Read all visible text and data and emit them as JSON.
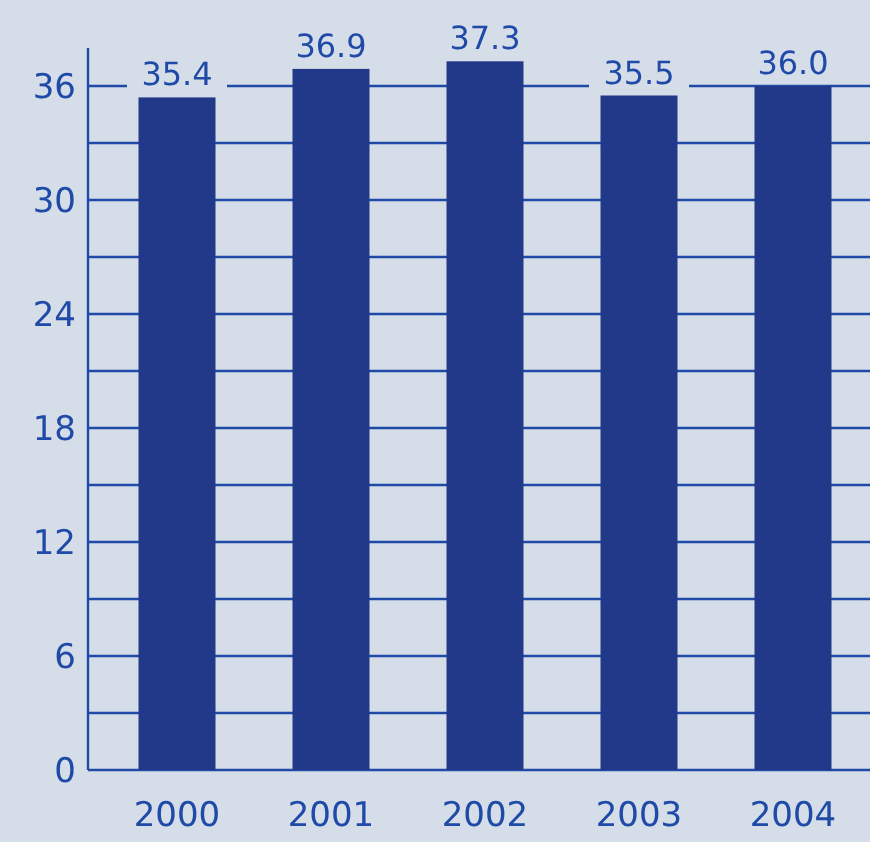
{
  "chart_data": {
    "type": "bar",
    "categories": [
      "2000",
      "2001",
      "2002",
      "2003",
      "2004"
    ],
    "values": [
      35.4,
      36.9,
      37.3,
      35.5,
      36.0
    ],
    "color": "#22398a",
    "value_labels": [
      "35.4",
      "36.9",
      "37.3",
      "35.5",
      "36.0"
    ],
    "ylim": [
      0,
      38
    ],
    "yticks": [
      0,
      {
        "value": 3,
        "label": null
      },
      6,
      {
        "value": 9,
        "label": null
      },
      12,
      {
        "value": 15,
        "label": null
      },
      18,
      {
        "value": 21,
        "label": null
      },
      24,
      {
        "value": 27,
        "label": null
      },
      30,
      {
        "value": 33,
        "label": null
      },
      36
    ],
    "grid": "y"
  }
}
